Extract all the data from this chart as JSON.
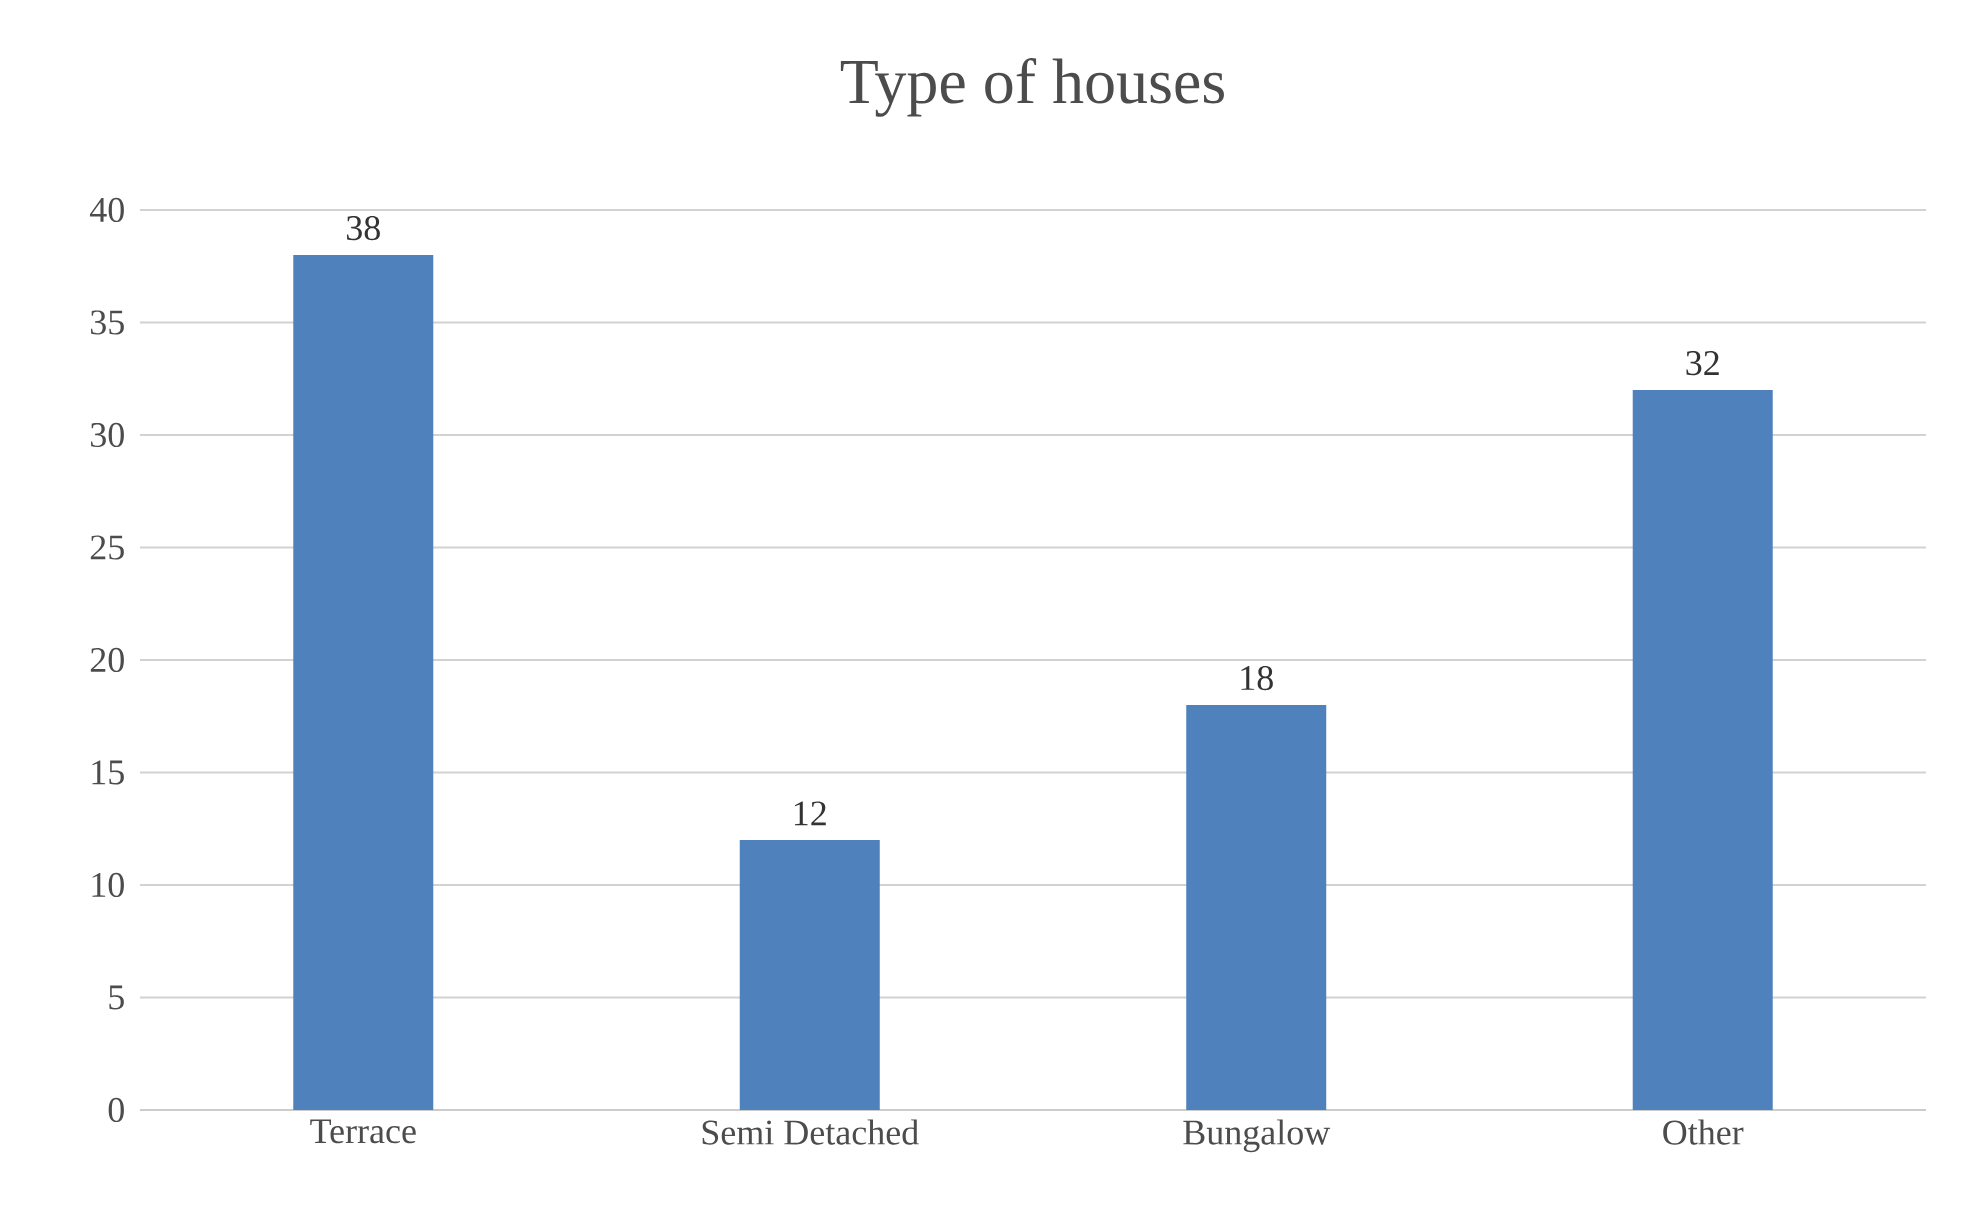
{
  "chart_data": {
    "type": "bar",
    "title": "Type of houses",
    "categories": [
      "Terrace",
      "Semi Detached",
      "Bungalow",
      "Other"
    ],
    "values": [
      38,
      12,
      18,
      32
    ],
    "color": "#4f81bd",
    "ylim": [
      0,
      40
    ],
    "yticks": [
      0,
      5,
      10,
      15,
      20,
      25,
      30,
      35,
      40
    ],
    "grid": "y",
    "data_labels": true
  }
}
